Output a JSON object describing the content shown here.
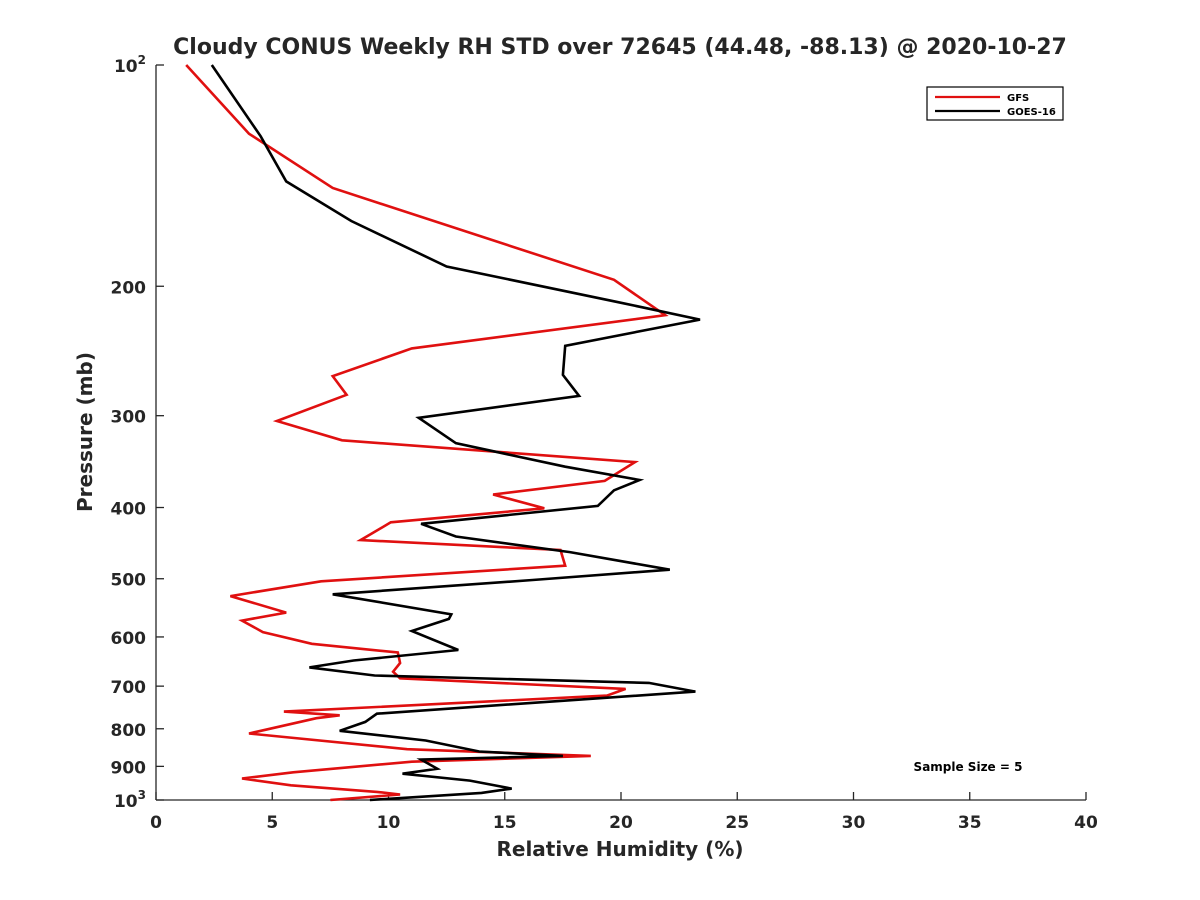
{
  "chart_data": {
    "type": "line",
    "title": "Cloudy CONUS Weekly RH STD over 72645 (44.48, -88.13) @ 2020-10-27",
    "xlabel": "Relative Humidity (%)",
    "ylabel": "Pressure (mb)",
    "xlim": [
      0,
      40
    ],
    "ylim": [
      100,
      1000
    ],
    "y_scale": "log",
    "y_reversed": true,
    "grid": false,
    "legend_position": "top-right",
    "x_ticks": [
      "0",
      "5",
      "10",
      "15",
      "20",
      "25",
      "30",
      "35",
      "40"
    ],
    "x_tick_values": [
      0,
      5,
      10,
      15,
      20,
      25,
      30,
      35,
      40
    ],
    "y_ticks": [
      {
        "value": 100,
        "base": "10",
        "exp": "2"
      },
      {
        "value": 200,
        "label": "200"
      },
      {
        "value": 300,
        "label": "300"
      },
      {
        "value": 400,
        "label": "400"
      },
      {
        "value": 500,
        "label": "500"
      },
      {
        "value": 600,
        "label": "600"
      },
      {
        "value": 700,
        "label": "700"
      },
      {
        "value": 800,
        "label": "800"
      },
      {
        "value": 900,
        "label": "900"
      },
      {
        "value": 1000,
        "base": "10",
        "exp": "3"
      }
    ],
    "annotation": "Sample Size = 5",
    "series": [
      {
        "name": "GFS",
        "color": "#e01010",
        "points": [
          [
            1.3,
            100
          ],
          [
            4.0,
            124
          ],
          [
            7.6,
            147
          ],
          [
            19.7,
            196
          ],
          [
            21.9,
            219
          ],
          [
            11.0,
            243
          ],
          [
            7.6,
            265
          ],
          [
            8.2,
            281
          ],
          [
            5.2,
            305
          ],
          [
            8.0,
            324
          ],
          [
            20.6,
            347
          ],
          [
            19.3,
            368
          ],
          [
            14.5,
            384
          ],
          [
            16.7,
            401
          ],
          [
            10.1,
            419
          ],
          [
            8.8,
            443
          ],
          [
            17.4,
            457
          ],
          [
            17.6,
            480
          ],
          [
            7.1,
            504
          ],
          [
            3.2,
            528
          ],
          [
            5.6,
            556
          ],
          [
            3.7,
            570
          ],
          [
            4.6,
            591
          ],
          [
            6.7,
            613
          ],
          [
            10.4,
            630
          ],
          [
            10.5,
            651
          ],
          [
            10.2,
            669
          ],
          [
            10.5,
            683
          ],
          [
            20.2,
            706
          ],
          [
            19.4,
            721
          ],
          [
            5.5,
            758
          ],
          [
            7.9,
            767
          ],
          [
            6.9,
            774
          ],
          [
            4.0,
            812
          ],
          [
            10.8,
            853
          ],
          [
            18.7,
            871
          ],
          [
            11.0,
            887
          ],
          [
            5.9,
            917
          ],
          [
            3.7,
            935
          ],
          [
            5.8,
            955
          ],
          [
            9.5,
            975
          ],
          [
            10.5,
            983
          ],
          [
            7.5,
            1000
          ]
        ]
      },
      {
        "name": "GOES-16",
        "color": "#000000",
        "points": [
          [
            2.4,
            100
          ],
          [
            4.5,
            125
          ],
          [
            5.6,
            144
          ],
          [
            8.4,
            163
          ],
          [
            12.5,
            188
          ],
          [
            19.8,
            210
          ],
          [
            23.4,
            222
          ],
          [
            17.6,
            241
          ],
          [
            17.5,
            264
          ],
          [
            18.2,
            282
          ],
          [
            11.3,
            302
          ],
          [
            12.9,
            327
          ],
          [
            17.6,
            352
          ],
          [
            20.8,
            367
          ],
          [
            19.7,
            379
          ],
          [
            19.0,
            398
          ],
          [
            11.4,
            421
          ],
          [
            12.9,
            438
          ],
          [
            17.8,
            460
          ],
          [
            22.1,
            486
          ],
          [
            16.2,
            502
          ],
          [
            7.6,
            525
          ],
          [
            12.7,
            559
          ],
          [
            12.6,
            567
          ],
          [
            11.0,
            589
          ],
          [
            13.0,
            625
          ],
          [
            8.5,
            646
          ],
          [
            6.6,
            660
          ],
          [
            9.4,
            677
          ],
          [
            21.2,
            693
          ],
          [
            23.2,
            712
          ],
          [
            17.4,
            733
          ],
          [
            9.5,
            763
          ],
          [
            9.0,
            783
          ],
          [
            7.9,
            805
          ],
          [
            11.6,
            830
          ],
          [
            13.9,
            859
          ],
          [
            17.5,
            871
          ],
          [
            11.4,
            881
          ],
          [
            12.1,
            907
          ],
          [
            10.6,
            921
          ],
          [
            13.5,
            941
          ],
          [
            15.3,
            965
          ],
          [
            14.0,
            978
          ],
          [
            9.2,
            1000
          ]
        ]
      }
    ]
  }
}
